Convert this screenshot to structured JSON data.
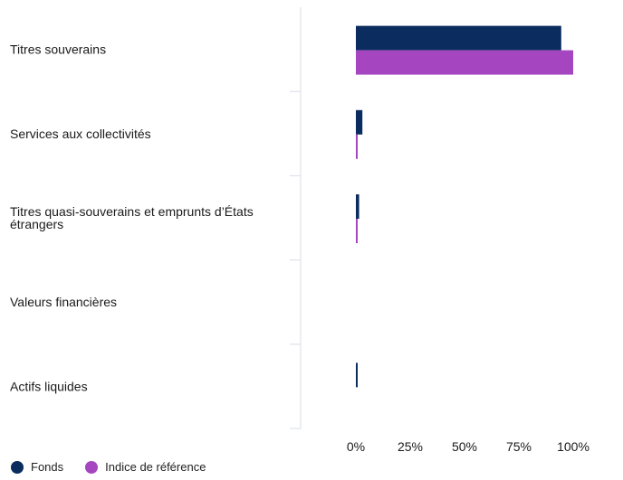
{
  "chart_data": {
    "type": "bar",
    "orientation": "horizontal",
    "categories": [
      [
        "Titres souverains"
      ],
      [
        "Services aux collectivités"
      ],
      [
        "Titres quasi-souverains et emprunts d’États",
        "étrangers"
      ],
      [
        "Valeurs financières"
      ],
      [
        "Actifs liquides"
      ]
    ],
    "series": [
      {
        "name": "Fonds",
        "color": "#0b2c5e",
        "values": [
          94.5,
          3.0,
          1.5,
          0,
          0.5
        ]
      },
      {
        "name": "Indice de référence",
        "color": "#a546c0",
        "values": [
          100,
          0.5,
          0.5,
          0,
          0
        ]
      }
    ],
    "xaxis": {
      "tick_labels": [
        "0%",
        "25%",
        "50%",
        "75%",
        "100%"
      ],
      "ticks": [
        0,
        25,
        50,
        75,
        100
      ],
      "xlim": [
        -25,
        125
      ]
    },
    "grid": false,
    "legend": "bottom-left"
  }
}
